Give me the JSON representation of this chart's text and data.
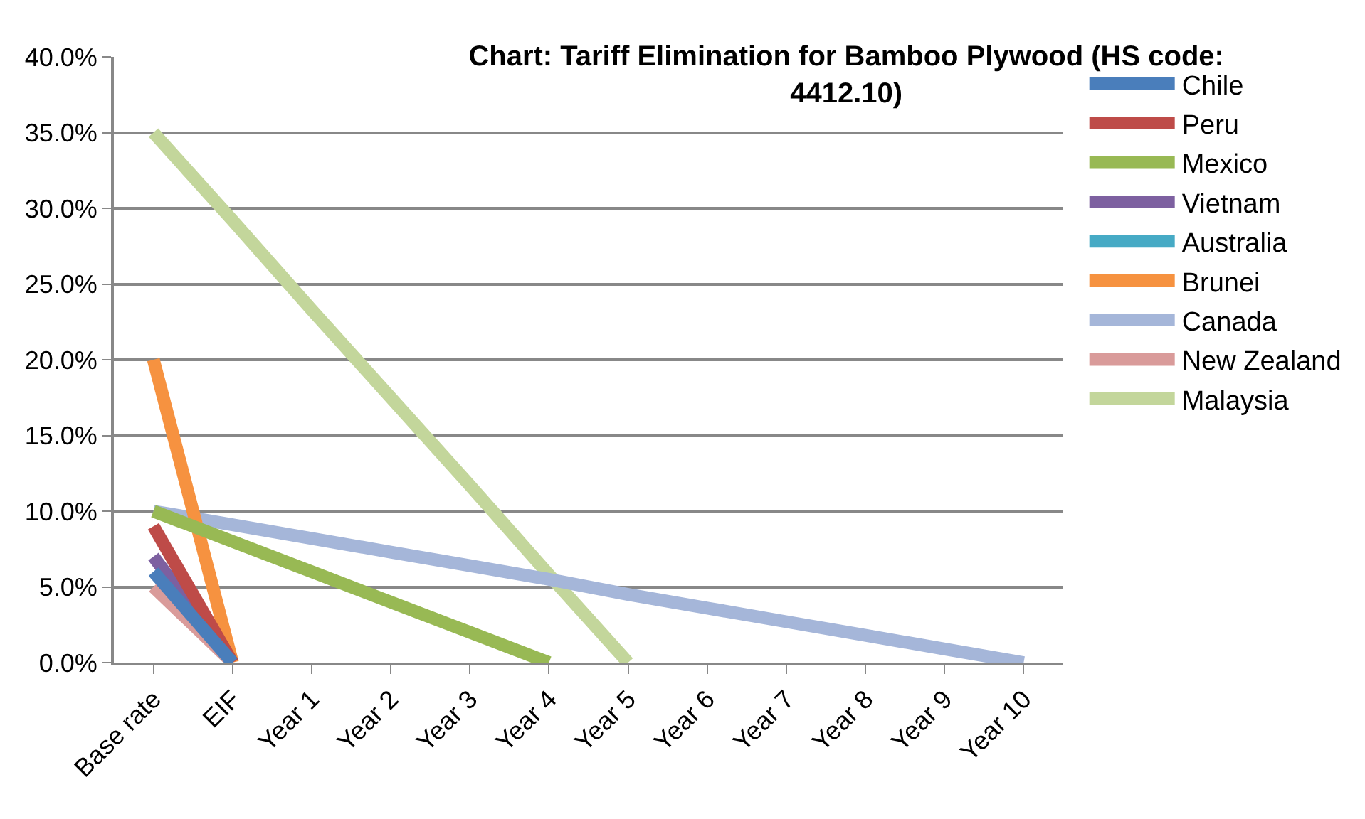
{
  "chart_data": {
    "type": "line",
    "title": "Chart: Tariff Elimination for Bamboo Plywood (HS code: 4412.10)",
    "categories": [
      "Base rate",
      "EIF",
      "Year 1",
      "Year 2",
      "Year 3",
      "Year 4",
      "Year 5",
      "Year 6",
      "Year 7",
      "Year 8",
      "Year 9",
      "Year 10"
    ],
    "series": [
      {
        "name": "Chile",
        "color": "#4a7ebb",
        "values": [
          6,
          0,
          null,
          null,
          null,
          null,
          null,
          null,
          null,
          null,
          null,
          null
        ]
      },
      {
        "name": "Peru",
        "color": "#be4b48",
        "values": [
          9,
          0,
          null,
          null,
          null,
          null,
          null,
          null,
          null,
          null,
          null,
          null
        ]
      },
      {
        "name": "Mexico",
        "color": "#98b954",
        "values": [
          10,
          8,
          6,
          4,
          2,
          0,
          null,
          null,
          null,
          null,
          null,
          null
        ]
      },
      {
        "name": "Vietnam",
        "color": "#7d60a0",
        "values": [
          7,
          0,
          null,
          null,
          null,
          null,
          null,
          null,
          null,
          null,
          null,
          null
        ]
      },
      {
        "name": "Australia",
        "color": "#46aac5",
        "values": [
          null,
          null,
          null,
          null,
          null,
          null,
          null,
          null,
          null,
          null,
          null,
          null
        ]
      },
      {
        "name": "Brunei",
        "color": "#f69240",
        "values": [
          20,
          0,
          null,
          null,
          null,
          null,
          null,
          null,
          null,
          null,
          null,
          null
        ]
      },
      {
        "name": "Canada",
        "color": "#a5b6d9",
        "values": [
          10,
          9.1,
          8.2,
          7.3,
          6.4,
          5.5,
          4.5,
          3.6,
          2.7,
          1.8,
          0.9,
          0
        ]
      },
      {
        "name": "New Zealand",
        "color": "#d99b9a",
        "values": [
          5,
          0,
          null,
          null,
          null,
          null,
          null,
          null,
          null,
          null,
          null,
          null
        ]
      },
      {
        "name": "Malaysia",
        "color": "#c3d69b",
        "values": [
          35,
          29.2,
          23.3,
          17.5,
          11.7,
          5.8,
          0,
          null,
          null,
          null,
          null,
          null
        ]
      }
    ],
    "ylim": [
      0,
      40
    ],
    "yticks": [
      {
        "value": 0,
        "label": "0.0%"
      },
      {
        "value": 5,
        "label": "5.0%"
      },
      {
        "value": 10,
        "label": "10.0%"
      },
      {
        "value": 15,
        "label": "15.0%"
      },
      {
        "value": 20,
        "label": "20.0%"
      },
      {
        "value": 25,
        "label": "25.0%"
      },
      {
        "value": 30,
        "label": "30.0%"
      },
      {
        "value": 35,
        "label": "35.0%"
      },
      {
        "value": 40,
        "label": "40.0%"
      }
    ],
    "grid": "y",
    "legend": "right",
    "marker": "none",
    "line_style": "solid"
  }
}
